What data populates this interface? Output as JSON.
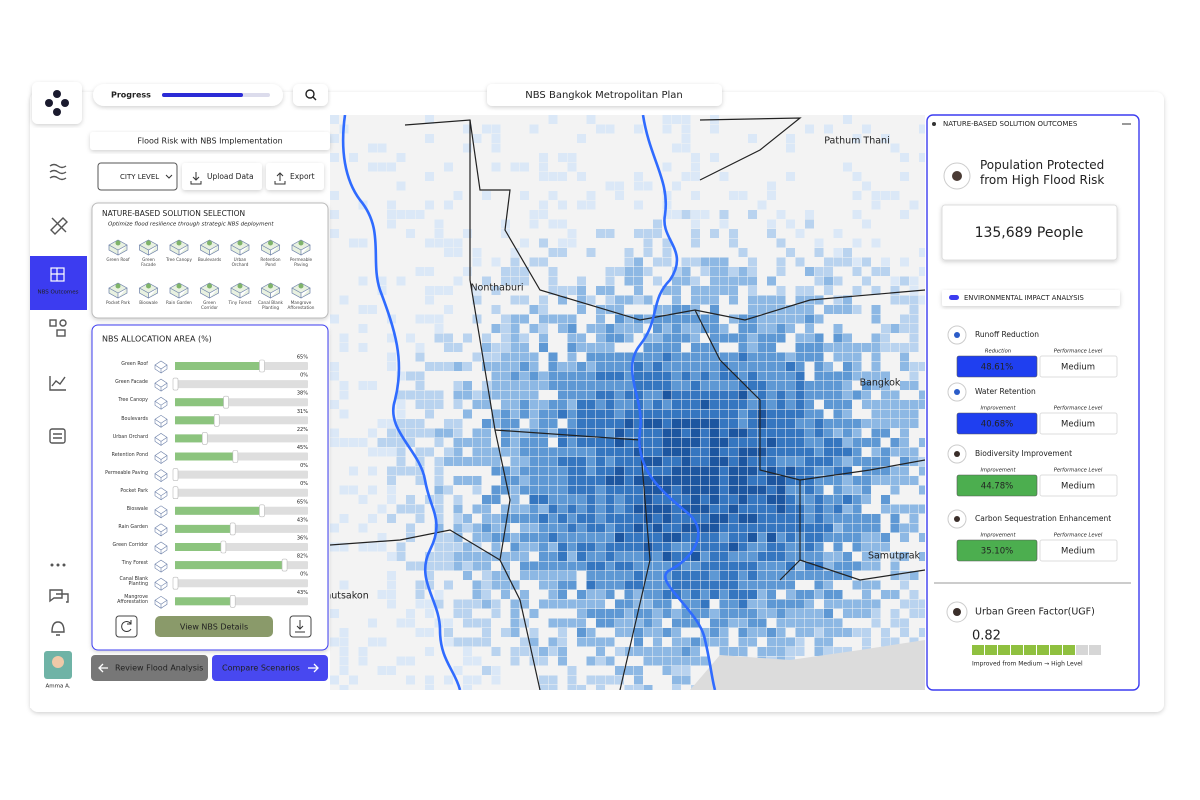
{
  "app": {
    "title": "NBS Bangkok Metropolitan Plan",
    "progress_label": "Progress",
    "progress": 75,
    "active_nav": "NBS Outcomes",
    "user": "Amma A."
  },
  "toolbar": {
    "subtitle": "Flood Risk with NBS Implementation",
    "level": "CITY LEVEL",
    "upload": "Upload Data",
    "export": "Export"
  },
  "selection": {
    "title": "NATURE-BASED SOLUTION SELECTION",
    "subtitle": "Optimize flood resilience through strategic NBS deployment",
    "items": [
      "Green Roof",
      "Green Facade",
      "Tree Canopy",
      "Boulevards",
      "Urban Orchard",
      "Retention Pond",
      "Permeable Paving",
      "Pocket Park",
      "Bioswale",
      "Rain Garden",
      "Green Corridor",
      "Tiny Forest",
      "Canal Blank Planting",
      "Mangrove Afforestation"
    ]
  },
  "chart_data": {
    "type": "bar",
    "orientation": "horizontal",
    "title": "NBS ALLOCATION AREA (%)",
    "categories": [
      "Green Roof",
      "Green Facade",
      "Tree Canopy",
      "Boulevards",
      "Urban Orchard",
      "Retention Pond",
      "Permeable Paving",
      "Pocket Park",
      "Bioswale",
      "Rain Garden",
      "Green Corridor",
      "Tiny Forest",
      "Canal Blank Planting",
      "Mangrove Afforestation"
    ],
    "values": [
      65,
      0,
      38,
      31,
      22,
      45,
      0,
      0,
      65,
      43,
      36,
      82,
      0,
      43
    ],
    "value_labels": [
      "65%",
      "0%",
      "38%",
      "31%",
      "22%",
      "45%",
      "0%",
      "0%",
      "65%",
      "43%",
      "36%",
      "82%",
      "0%",
      "43%"
    ],
    "xlim": [
      0,
      100
    ],
    "color": "#8cc47e"
  },
  "actions": {
    "details": "View NBS Details",
    "review": "Review Flood Analysis",
    "compare": "Compare Scenarios"
  },
  "map": {
    "labels": [
      "Pathum Thani",
      "Nonthaburi",
      "Bangkok",
      "Samutprak",
      "nutsakon"
    ]
  },
  "outcomes": {
    "title": "NATURE-BASED SOLUTION OUTCOMES",
    "population_title": "Population Protected from High Flood Risk",
    "population": "135,689 People",
    "impact_title": "ENVIRONMENTAL IMPACT ANALYSIS",
    "metrics": [
      {
        "name": "Runoff Reduction",
        "sub_label": "Reduction",
        "value": "48.61%",
        "level_label": "Performance Level",
        "level": "Medium",
        "color": "#1f3ff0"
      },
      {
        "name": "Water Retention",
        "sub_label": "Improvement",
        "value": "40.68%",
        "level_label": "Performance Level",
        "level": "Medium",
        "color": "#1f3ff0"
      },
      {
        "name": "Biodiversity Improvement",
        "sub_label": "Improvement",
        "value": "44.78%",
        "level_label": "Performance Level",
        "level": "Medium",
        "color": "#4cae4f"
      },
      {
        "name": "Carbon Sequestration Enhancement",
        "sub_label": "Improvement",
        "value": "35.10%",
        "level_label": "Performance Level",
        "level": "Medium",
        "color": "#4cae4f"
      }
    ],
    "ugf_title": "Urban Green Factor(UGF)",
    "ugf": 0.82,
    "ugf_note": "Improved from Medium → High Level"
  }
}
